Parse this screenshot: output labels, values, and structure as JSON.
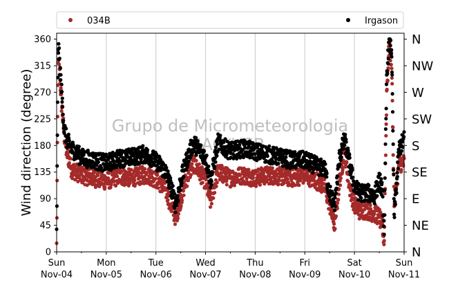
{
  "chart_data": {
    "type": "scatter",
    "ylabel": "Wind direction (degree)",
    "xlabel": "",
    "ylim": [
      0,
      370
    ],
    "yticks": [
      0,
      45,
      90,
      135,
      180,
      225,
      270,
      315,
      360
    ],
    "xlim": [
      0,
      7
    ],
    "x_tick_labels": [
      {
        "x": 0,
        "day": "Sun",
        "date": "Nov-04"
      },
      {
        "x": 1,
        "day": "Mon",
        "date": "Nov-05"
      },
      {
        "x": 2,
        "day": "Tue",
        "date": "Nov-06"
      },
      {
        "x": 3,
        "day": "Wed",
        "date": "Nov-07"
      },
      {
        "x": 4,
        "day": "Thu",
        "date": "Nov-08"
      },
      {
        "x": 5,
        "day": "Fri",
        "date": "Nov-09"
      },
      {
        "x": 6,
        "day": "Sat",
        "date": "Nov-10"
      },
      {
        "x": 7,
        "day": "Sun",
        "date": "Nov-11"
      }
    ],
    "direction_labels": [
      {
        "deg": 0,
        "label": "N"
      },
      {
        "deg": 45,
        "label": "NE"
      },
      {
        "deg": 90,
        "label": "E"
      },
      {
        "deg": 135,
        "label": "SE"
      },
      {
        "deg": 180,
        "label": "S"
      },
      {
        "deg": 225,
        "label": "SW"
      },
      {
        "deg": 270,
        "label": "W"
      },
      {
        "deg": 315,
        "label": "NW"
      },
      {
        "deg": 360,
        "label": "N"
      }
    ],
    "grid": "vertical",
    "legend": "top",
    "watermark_lines": [
      "Grupo de Micrometeorologia",
      "IAG/USP"
    ],
    "series": [
      {
        "name": "034B",
        "color": "#a52a2a",
        "x": [
          0.0,
          0.03,
          0.06,
          0.1,
          0.15,
          0.2,
          0.3,
          0.5,
          0.75,
          1.0,
          1.25,
          1.5,
          1.75,
          1.9,
          2.05,
          2.2,
          2.3,
          2.4,
          2.5,
          2.6,
          2.75,
          3.0,
          3.1,
          3.25,
          3.5,
          3.75,
          4.0,
          4.25,
          4.5,
          4.75,
          5.0,
          5.25,
          5.4,
          5.5,
          5.6,
          5.7,
          5.8,
          5.9,
          6.0,
          6.1,
          6.25,
          6.4,
          6.5,
          6.55,
          6.6,
          6.65,
          6.7,
          6.75,
          6.8,
          6.9,
          7.0
        ],
        "y": [
          10,
          330,
          300,
          250,
          200,
          170,
          140,
          130,
          125,
          120,
          128,
          125,
          130,
          128,
          120,
          105,
          80,
          58,
          90,
          120,
          150,
          120,
          85,
          135,
          125,
          130,
          125,
          130,
          128,
          125,
          130,
          120,
          110,
          80,
          45,
          120,
          170,
          110,
          80,
          70,
          70,
          65,
          60,
          45,
          20,
          270,
          350,
          320,
          80,
          150,
          150
        ]
      },
      {
        "name": "Irgason",
        "color": "#000000",
        "x": [
          0.0,
          0.03,
          0.06,
          0.1,
          0.15,
          0.2,
          0.3,
          0.5,
          0.75,
          1.0,
          1.25,
          1.5,
          1.75,
          1.9,
          2.05,
          2.2,
          2.3,
          2.4,
          2.5,
          2.6,
          2.75,
          3.0,
          3.1,
          3.25,
          3.5,
          3.75,
          4.0,
          4.25,
          4.5,
          4.75,
          5.0,
          5.25,
          5.4,
          5.5,
          5.6,
          5.7,
          5.8,
          5.9,
          6.0,
          6.1,
          6.25,
          6.4,
          6.5,
          6.55,
          6.6,
          6.65,
          6.7,
          6.75,
          6.8,
          6.9,
          7.0
        ],
        "y": [
          30,
          350,
          320,
          270,
          210,
          190,
          175,
          160,
          155,
          150,
          158,
          160,
          165,
          160,
          150,
          135,
          110,
          80,
          120,
          150,
          185,
          160,
          120,
          185,
          170,
          175,
          170,
          165,
          160,
          155,
          155,
          145,
          140,
          100,
          80,
          160,
          190,
          150,
          110,
          100,
          100,
          95,
          120,
          110,
          40,
          300,
          355,
          340,
          60,
          175,
          190
        ]
      }
    ]
  }
}
